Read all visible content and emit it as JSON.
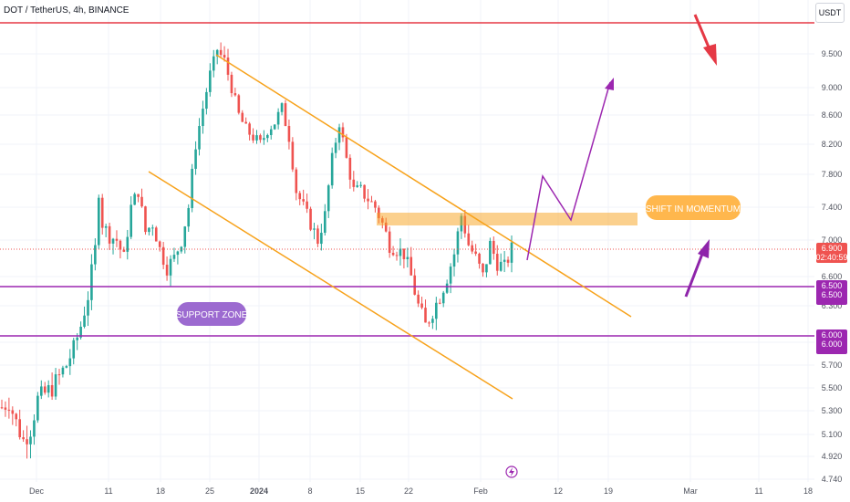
{
  "header": {
    "title": "DOT / TetherUS, 4h, BINANCE",
    "unit_button": "USDT"
  },
  "colors": {
    "up": "#26a69a",
    "down": "#ef5350",
    "channel": "#f7a21b",
    "purple": "#9c27b0",
    "resistance_line": "#e53945",
    "current_price": "#ef5350"
  },
  "chart_data": {
    "type": "candlestick",
    "title": "DOT / TetherUS, 4h, BINANCE",
    "symbol": "DOT / TetherUS",
    "interval": "4h",
    "exchange": "BINANCE",
    "price_unit": "USDT",
    "y_ticks": [
      4.74,
      4.92,
      5.1,
      5.3,
      5.5,
      5.7,
      5.9,
      6.3,
      6.6,
      7.0,
      7.4,
      7.8,
      8.2,
      8.6,
      9.0,
      9.5
    ],
    "ylim": [
      4.7,
      10.1
    ],
    "x_ticks": [
      "Dec",
      "11",
      "18",
      "25",
      "2024",
      "8",
      "15",
      "22",
      "Feb",
      "12",
      "19",
      "Mar",
      "11",
      "18"
    ],
    "current_price": 6.9,
    "countdown": "02:40:59",
    "price_path": [
      [
        0,
        5.33
      ],
      [
        2,
        5.38
      ],
      [
        4,
        5.2
      ],
      [
        6,
        5.05
      ],
      [
        8,
        5.15
      ],
      [
        10,
        5.4
      ],
      [
        12,
        5.45
      ],
      [
        14,
        5.5
      ],
      [
        16,
        5.6
      ],
      [
        18,
        5.7
      ],
      [
        20,
        5.85
      ],
      [
        22,
        6.1
      ],
      [
        24,
        6.4
      ],
      [
        26,
        6.9
      ],
      [
        27,
        7.6
      ],
      [
        28,
        7.2
      ],
      [
        30,
        7.05
      ],
      [
        32,
        7.0
      ],
      [
        34,
        6.8
      ],
      [
        36,
        7.4
      ],
      [
        38,
        7.6
      ],
      [
        40,
        7.1
      ],
      [
        42,
        7.2
      ],
      [
        44,
        6.9
      ],
      [
        46,
        6.7
      ],
      [
        48,
        6.8
      ],
      [
        50,
        7.0
      ],
      [
        52,
        7.4
      ],
      [
        54,
        8.2
      ],
      [
        56,
        8.7
      ],
      [
        58,
        9.2
      ],
      [
        60,
        9.55
      ],
      [
        62,
        9.4
      ],
      [
        64,
        9.0
      ],
      [
        66,
        8.6
      ],
      [
        68,
        8.4
      ],
      [
        70,
        8.3
      ],
      [
        72,
        8.2
      ],
      [
        74,
        8.4
      ],
      [
        76,
        8.5
      ],
      [
        78,
        8.7
      ],
      [
        80,
        8.3
      ],
      [
        82,
        7.6
      ],
      [
        84,
        7.4
      ],
      [
        86,
        7.2
      ],
      [
        88,
        7.0
      ],
      [
        90,
        7.3
      ],
      [
        92,
        8.0
      ],
      [
        94,
        8.5
      ],
      [
        96,
        8.0
      ],
      [
        98,
        7.6
      ],
      [
        100,
        7.6
      ],
      [
        102,
        7.5
      ],
      [
        104,
        7.4
      ],
      [
        106,
        7.2
      ],
      [
        108,
        6.95
      ],
      [
        110,
        6.9
      ],
      [
        112,
        6.85
      ],
      [
        114,
        6.6
      ],
      [
        116,
        6.3
      ],
      [
        118,
        6.1
      ],
      [
        120,
        6.25
      ],
      [
        122,
        6.4
      ],
      [
        124,
        6.6
      ],
      [
        126,
        6.85
      ],
      [
        128,
        7.3
      ],
      [
        130,
        6.95
      ],
      [
        132,
        6.8
      ],
      [
        134,
        6.6
      ],
      [
        136,
        6.95
      ],
      [
        138,
        6.75
      ],
      [
        140,
        6.7
      ],
      [
        142,
        6.9
      ]
    ],
    "horizontal_lines": [
      {
        "name": "resistance",
        "price": 9.82,
        "color": "#e53945"
      },
      {
        "name": "support-upper",
        "price": 6.5,
        "label": "6.500",
        "color": "#9c27b0"
      },
      {
        "name": "support-lower",
        "price": 6.0,
        "label": "6.000",
        "color": "#9c27b0"
      }
    ],
    "annotations": {
      "support_zone": "SUPPORT ZONE",
      "shift_in_momentum": "SHIFT IN MOMENTUM"
    }
  },
  "price_tags": {
    "current": "6.900",
    "countdown": "02:40:59",
    "support_upper_a": "6.500",
    "support_upper_b": "6.500",
    "support_lower_a": "6.000",
    "support_lower_b": "6.000"
  }
}
